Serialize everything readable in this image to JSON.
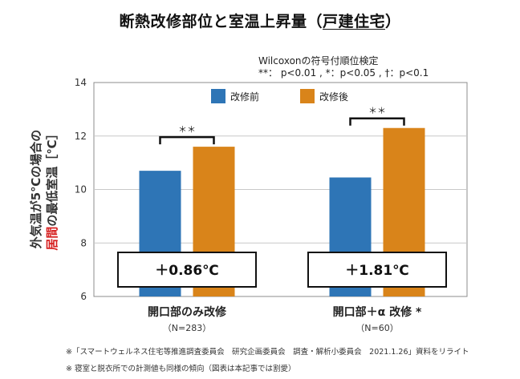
{
  "title": {
    "main": "断熱改修部位と室温上昇量（",
    "underlined": "戸建住宅",
    "end": "）"
  },
  "stats_note": {
    "line1": "Wilcoxonの符号付順位検定",
    "line2": "**： p<0.01 , *：p<0.05 , †：p<0.1"
  },
  "chart_data": {
    "type": "bar",
    "ylabel_line1": "外気温が5℃の場合の",
    "ylabel_line2_highlight": "居間",
    "ylabel_line2_rest": "の最低室温［℃］",
    "ylim": [
      6,
      14
    ],
    "yticks": [
      6,
      8,
      10,
      12,
      14
    ],
    "grid": true,
    "legend_position": "top-center",
    "categories": [
      "開口部のみ改修",
      "開口部＋α 改修 *"
    ],
    "category_sublabels": [
      "（N=283）",
      "（N=60）"
    ],
    "series": [
      {
        "name": "改修前",
        "color": "#2e75b6",
        "values": [
          10.7,
          10.45
        ]
      },
      {
        "name": "改修後",
        "color": "#d9841a",
        "values": [
          11.6,
          12.3
        ]
      }
    ],
    "significance": [
      "＊＊",
      "＊＊"
    ],
    "annotations": [
      "＋0.86℃",
      "＋1.81℃"
    ]
  },
  "footnotes": [
    "※「スマートウェルネス住宅等推進調査委員会　研究企画委員会　調査・解析小委員会　2021.1.26」資料をリライト",
    "※ 寝室と脱衣所での計測値も同様の傾向（図表は本記事では割愛）"
  ]
}
